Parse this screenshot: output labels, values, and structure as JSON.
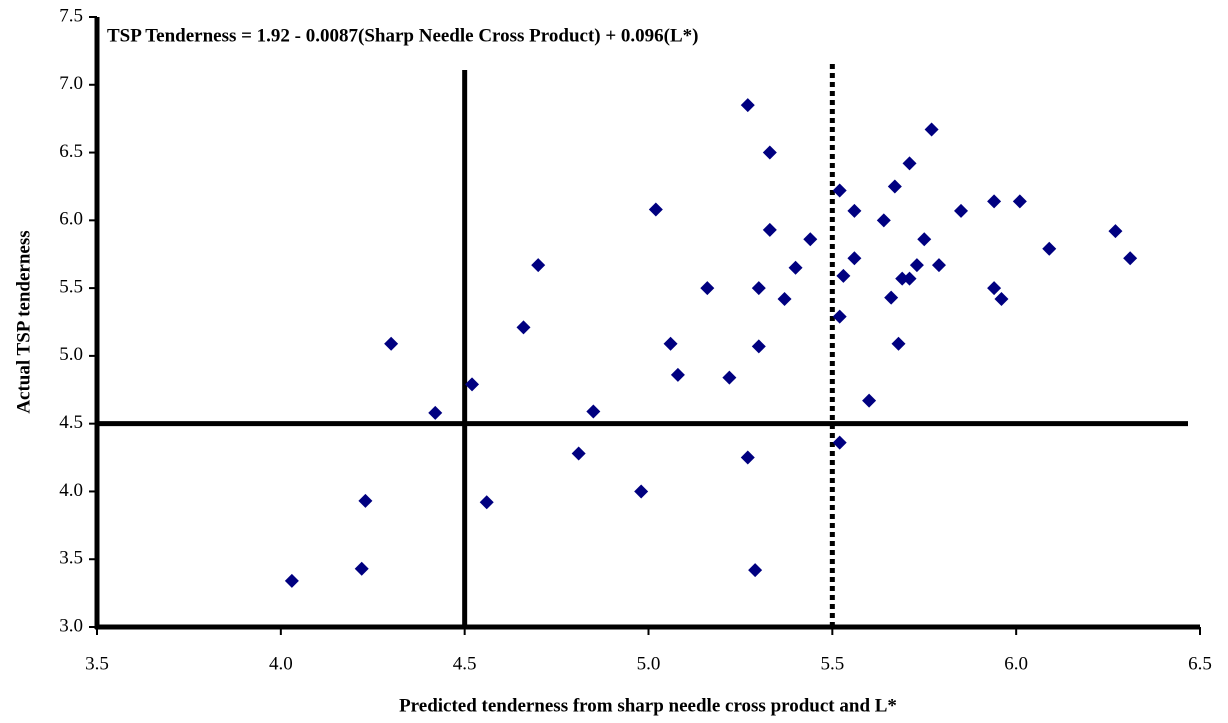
{
  "chart_data": {
    "type": "scatter",
    "annotation": "TSP Tenderness = 1.92 - 0.0087(Sharp Needle Cross Product) + 0.096(L*)",
    "x_label": "Predicted tenderness from sharp needle cross product and L*",
    "y_label": "Actual TSP tenderness",
    "xlim": [
      3.5,
      6.5
    ],
    "ylim": [
      3,
      7.5
    ],
    "xticks": [
      3.5,
      {
        "value": 4,
        "label": "4.0"
      },
      4.5,
      {
        "value": 5,
        "label": "5.0"
      },
      5.5,
      {
        "value": 6,
        "label": "6.0"
      },
      6.5
    ],
    "yticks": [
      {
        "value": 3,
        "label": "3.0"
      },
      3.5,
      {
        "value": 4,
        "label": "4.0"
      },
      4.5,
      {
        "value": 5,
        "label": "5.0"
      },
      5.5,
      {
        "value": 6,
        "label": "6.0"
      },
      6.5,
      {
        "value": 7,
        "label": "7.0"
      },
      7.5
    ],
    "reference_lines": [
      {
        "axis": "x",
        "value": 4.5,
        "style": "solid"
      },
      {
        "axis": "x",
        "value": 5.5,
        "style": "dotted"
      },
      {
        "axis": "y",
        "value": 4.5,
        "style": "solid"
      }
    ],
    "series": [
      {
        "color": "#000080",
        "x": [
          4.03,
          4.22,
          4.23,
          4.3,
          4.42,
          4.52,
          4.56,
          4.66,
          4.7,
          4.85,
          4.81,
          4.98,
          5.02,
          5.06,
          5.08,
          5.16,
          5.22,
          5.27,
          5.27,
          5.29,
          5.3,
          5.3,
          5.33,
          5.33,
          5.37,
          5.4,
          5.44,
          5.52,
          5.53,
          5.52,
          5.52,
          5.56,
          5.56,
          5.6,
          5.64,
          5.66,
          5.67,
          5.68,
          5.69,
          5.71,
          5.71,
          5.73,
          5.75,
          5.77,
          5.79,
          5.85,
          5.94,
          5.94,
          5.96,
          6.01,
          6.09,
          6.27,
          6.31
        ],
        "values": [
          3.34,
          3.43,
          3.93,
          5.09,
          4.58,
          4.79,
          3.92,
          5.21,
          5.67,
          4.59,
          4.28,
          4.0,
          6.08,
          5.09,
          4.86,
          5.5,
          4.84,
          4.25,
          6.85,
          3.42,
          5.5,
          5.07,
          6.5,
          5.93,
          5.42,
          5.65,
          5.86,
          6.22,
          5.59,
          5.29,
          4.36,
          6.07,
          5.72,
          4.67,
          6.0,
          5.43,
          6.25,
          5.09,
          5.57,
          5.57,
          6.42,
          5.67,
          5.86,
          6.67,
          5.67,
          6.07,
          6.14,
          5.5,
          5.42,
          6.14,
          5.79,
          5.92,
          5.72
        ]
      }
    ]
  }
}
